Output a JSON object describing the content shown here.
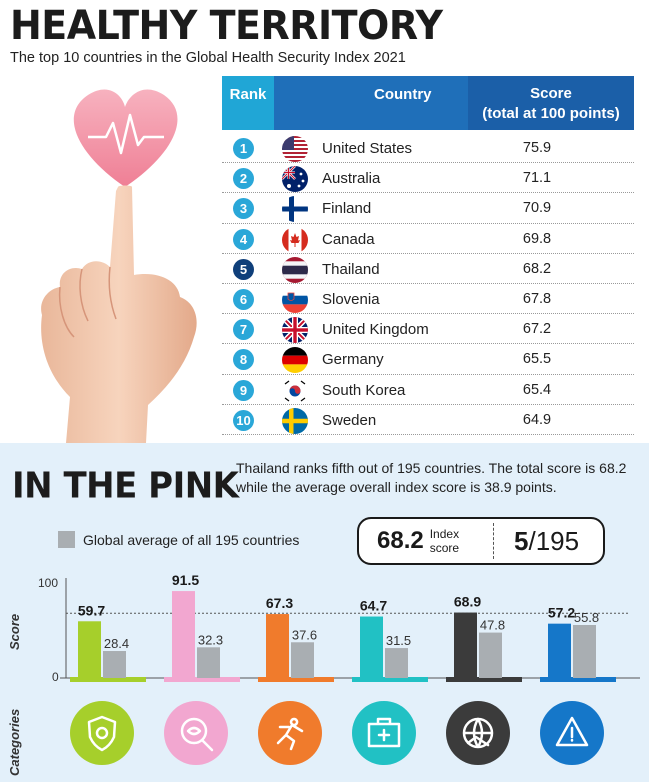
{
  "header": {
    "title": "HEALTHY TERRITORY",
    "subtitle": "The top 10 countries in the Global Health Security Index 2021"
  },
  "table": {
    "columns": {
      "rank": "Rank",
      "country": "Country",
      "score_line1": "Score",
      "score_line2": "(total at 100 points)"
    },
    "rows": [
      {
        "rank": "1",
        "country": "United States",
        "score": "75.9",
        "flag": "us-flag"
      },
      {
        "rank": "2",
        "country": "Australia",
        "score": "71.1",
        "flag": "australia-flag"
      },
      {
        "rank": "3",
        "country": "Finland",
        "score": "70.9",
        "flag": "finland-flag"
      },
      {
        "rank": "4",
        "country": "Canada",
        "score": "69.8",
        "flag": "canada-flag"
      },
      {
        "rank": "5",
        "country": "Thailand",
        "score": "68.2",
        "flag": "thailand-flag"
      },
      {
        "rank": "6",
        "country": "Slovenia",
        "score": "67.8",
        "flag": "slovenia-flag"
      },
      {
        "rank": "7",
        "country": "United Kingdom",
        "score": "67.2",
        "flag": "uk-flag"
      },
      {
        "rank": "8",
        "country": "Germany",
        "score": "65.5",
        "flag": "germany-flag"
      },
      {
        "rank": "9",
        "country": "South Korea",
        "score": "65.4",
        "flag": "south-korea-flag"
      },
      {
        "rank": "10",
        "country": "Sweden",
        "score": "64.9",
        "flag": "sweden-flag"
      }
    ]
  },
  "in_the_pink": {
    "title": "IN THE PINK",
    "description": "Thailand ranks fifth out of 195 countries. The total score is 68.2 while the average overall index score is 38.9 points.",
    "legend_label": "Global average of all 195 countries",
    "index_score_value": "68.2",
    "index_score_label_1": "Index",
    "index_score_label_2": "score",
    "rank_value": "5",
    "rank_total": "/195"
  },
  "chart_data": {
    "type": "bar",
    "ylabel": "Score",
    "xlabel": "Categories",
    "ylim": [
      0,
      100
    ],
    "y_ticks": [
      "0",
      "100"
    ],
    "series": [
      {
        "name": "Thailand",
        "values": [
          59.7,
          91.5,
          67.3,
          64.7,
          68.9,
          57.2
        ]
      },
      {
        "name": "Global average of all 195 countries",
        "values": [
          28.4,
          32.3,
          37.6,
          31.5,
          47.8,
          55.8
        ]
      }
    ],
    "value_labels": {
      "thailand": [
        "59.7",
        "91.5",
        "67.3",
        "64.7",
        "68.9",
        "57.2"
      ],
      "average": [
        "28.4",
        "32.3",
        "37.6",
        "31.5",
        "47.8",
        "55.8"
      ]
    },
    "category_colors": [
      "#a6cf2b",
      "#f2a7d0",
      "#f07b2c",
      "#21c1c4",
      "#3b3b3b",
      "#1577c9"
    ],
    "average_color": "#a9aeb2",
    "category_icons": [
      "shield-virus-icon",
      "magnifier-eye-icon",
      "running-person-icon",
      "medical-kit-icon",
      "globe-handshake-icon",
      "warning-icon"
    ],
    "reference_line": 68.2
  },
  "colors": {
    "header_rank": "#20a6d6",
    "header_country": "#1f6fb9",
    "header_score": "#1b5fa8",
    "bottom_bg": "#e3f0fa"
  }
}
